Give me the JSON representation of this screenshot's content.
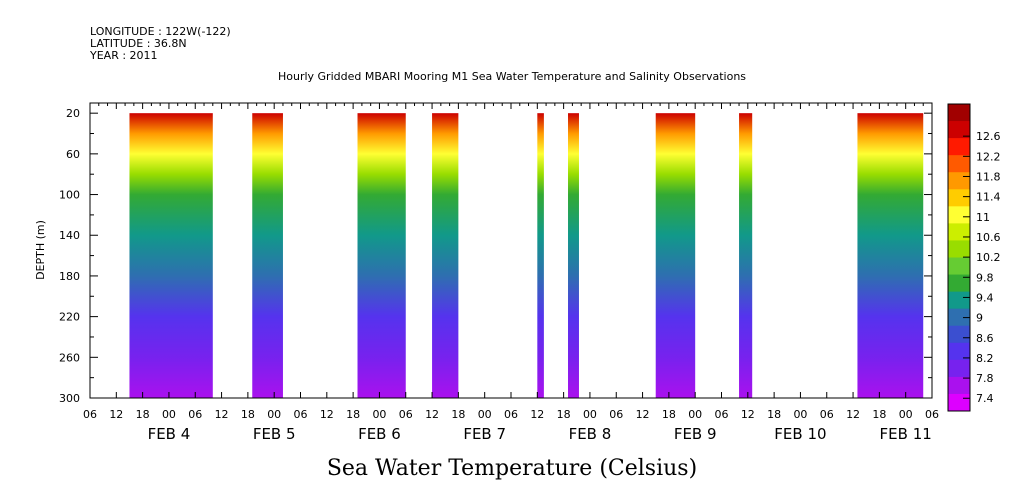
{
  "header": {
    "longitude": "LONGITUDE : 122W(-122)",
    "latitude": "LATITUDE : 36.8N",
    "year": "YEAR : 2011"
  },
  "chart_data": {
    "type": "heatmap",
    "title": "Hourly Gridded MBARI Mooring M1 Sea Water Temperature and Salinity Observations",
    "xlabel": "",
    "ylabel": "DEPTH (m)",
    "bottom_title": "Sea Water Temperature (Celsius)",
    "x_hour_ticks": [
      "06",
      "12",
      "18",
      "00",
      "06",
      "12",
      "18",
      "00",
      "06",
      "12",
      "18",
      "00",
      "06",
      "12",
      "18",
      "00",
      "06",
      "12",
      "18",
      "00",
      "06",
      "12",
      "18",
      "00",
      "06",
      "12",
      "18",
      "00",
      "06",
      "12",
      "18",
      "00",
      "06"
    ],
    "date_labels": [
      "FEB  4",
      "FEB  5",
      "FEB  6",
      "FEB  7",
      "FEB  8",
      "FEB  9",
      "FEB 10",
      "FEB 11"
    ],
    "x_range_hours_from_feb3_06": [
      0,
      192
    ],
    "y_ticks": [
      "20",
      "60",
      "100",
      "140",
      "180",
      "220",
      "260",
      "300"
    ],
    "ylim": [
      300,
      10
    ],
    "colorbar_levels": [
      "12.6",
      "12.2",
      "11.8",
      "11.4",
      "11",
      "10.6",
      "10.2",
      "9.8",
      "9.4",
      "9",
      "8.6",
      "8.2",
      "7.8",
      "7.4"
    ],
    "colorbar_colors": [
      "#a10000",
      "#cc0000",
      "#ff1a00",
      "#ff5a00",
      "#ff9900",
      "#ffcc00",
      "#ffff33",
      "#ccee00",
      "#99dd00",
      "#66cc33",
      "#33aa33",
      "#11998a",
      "#2e6fb0",
      "#3b4fd0",
      "#5533ee",
      "#7722ee",
      "#aa11ee",
      "#dd00ff"
    ],
    "observation_blocks_hours": [
      [
        9,
        28
      ],
      [
        37,
        44
      ],
      [
        61,
        72
      ],
      [
        78,
        84
      ],
      [
        102,
        103.5
      ],
      [
        109,
        111.5
      ],
      [
        129,
        138
      ],
      [
        148,
        151
      ],
      [
        175,
        190
      ]
    ],
    "temperature_profile": {
      "depths": [
        20,
        40,
        60,
        80,
        100,
        140,
        180,
        220,
        260,
        300
      ],
      "values": [
        12.4,
        11.6,
        10.9,
        10.2,
        9.6,
        9.1,
        8.7,
        8.3,
        7.9,
        7.6
      ]
    }
  }
}
